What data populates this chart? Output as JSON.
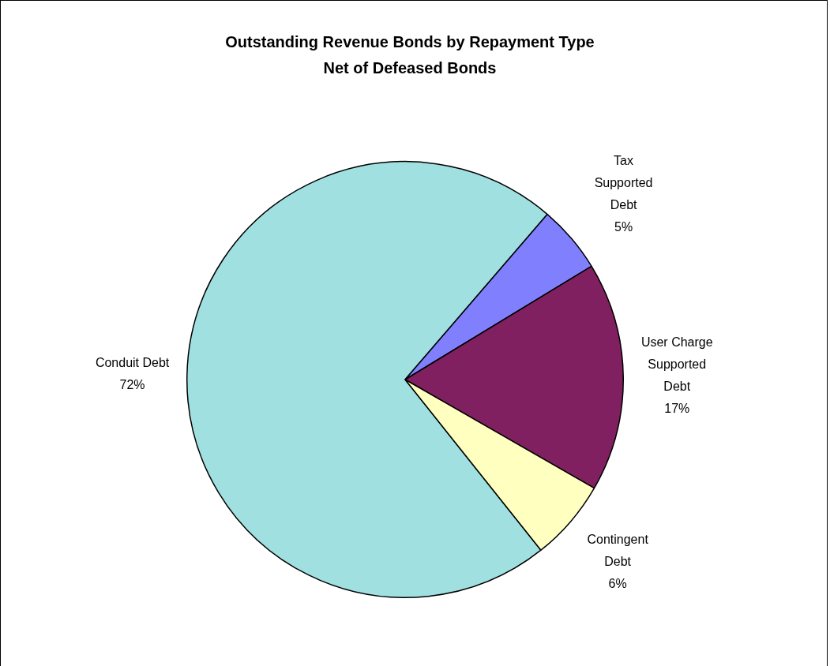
{
  "chart_data": {
    "type": "pie",
    "title": "Outstanding Revenue Bonds by Repayment Type\nNet of Defeased Bonds",
    "categories": [
      "Conduit Debt",
      "Tax Supported Debt",
      "User Charge Supported Debt",
      "Contingent Debt"
    ],
    "values": [
      72,
      5,
      17,
      6
    ],
    "value_labels": [
      "72%",
      "5%",
      "17%",
      "6%"
    ],
    "colors": [
      "#a0e0e0",
      "#8080ff",
      "#802060",
      "#ffffc0"
    ],
    "legend": false
  }
}
